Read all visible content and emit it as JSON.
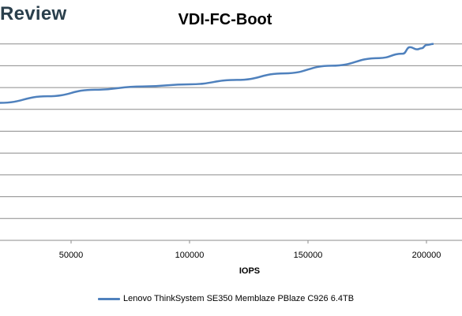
{
  "logo_text": "Review",
  "chart_data": {
    "type": "line",
    "title": "VDI-FC-Boot",
    "xlabel": "IOPS",
    "ylabel": "",
    "xlim": [
      20000,
      215000
    ],
    "ylim": [
      0,
      10
    ],
    "x_ticks": [
      50000,
      100000,
      150000,
      200000
    ],
    "y_gridlines": [
      1,
      2,
      3,
      4,
      5,
      6,
      7,
      8,
      9
    ],
    "grid": true,
    "legend_position": "bottom",
    "series": [
      {
        "name": "Lenovo ThinkSystem SE350 Memblaze PBlaze C926 6.4TB",
        "color": "#4f81bd",
        "x": [
          20000,
          40000,
          60000,
          80000,
          100000,
          120000,
          140000,
          160000,
          180000,
          190000,
          193000,
          196000,
          198000,
          200000,
          203000
        ],
        "y": [
          6.3,
          6.6,
          6.9,
          7.05,
          7.15,
          7.35,
          7.65,
          8.0,
          8.35,
          8.55,
          8.85,
          8.75,
          8.8,
          8.95,
          9.0
        ]
      }
    ]
  }
}
